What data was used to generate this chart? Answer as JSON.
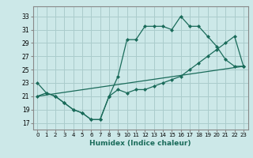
{
  "title": "",
  "xlabel": "Humidex (Indice chaleur)",
  "background_color": "#cce8e8",
  "grid_color": "#aacccc",
  "line_color": "#1a6b5a",
  "xlim": [
    -0.5,
    23.5
  ],
  "ylim": [
    16,
    34.5
  ],
  "yticks": [
    17,
    19,
    21,
    23,
    25,
    27,
    29,
    31,
    33
  ],
  "xticks": [
    0,
    1,
    2,
    3,
    4,
    5,
    6,
    7,
    8,
    9,
    10,
    11,
    12,
    13,
    14,
    15,
    16,
    17,
    18,
    19,
    20,
    21,
    22,
    23
  ],
  "line1_x": [
    0,
    1,
    2,
    3,
    4,
    5,
    6,
    7,
    8,
    9,
    10,
    11,
    12,
    13,
    14,
    15,
    16,
    17,
    18,
    19,
    20,
    21,
    22,
    23
  ],
  "line1_y": [
    23,
    21.5,
    21,
    20,
    19,
    18.5,
    17.5,
    17.5,
    21,
    24,
    29.5,
    29.5,
    31.5,
    31.5,
    31.5,
    31,
    33,
    31.5,
    31.5,
    30,
    28.5,
    26.5,
    25.5,
    25.5
  ],
  "line2_x": [
    0,
    1,
    2,
    3,
    4,
    5,
    6,
    7,
    8,
    9,
    10,
    11,
    12,
    13,
    14,
    15,
    16,
    17,
    18,
    19,
    20,
    21,
    22,
    23
  ],
  "line2_y": [
    21,
    21.5,
    21,
    20,
    19,
    18.5,
    17.5,
    17.5,
    21,
    22,
    21.5,
    22,
    22,
    22.5,
    23,
    23.5,
    24,
    25,
    26,
    27,
    28,
    29,
    30,
    25.5
  ],
  "line3_x": [
    0,
    23
  ],
  "line3_y": [
    21,
    25.5
  ],
  "marker": "D",
  "marker_size": 2.0,
  "figsize": [
    3.2,
    2.0
  ],
  "dpi": 100,
  "tick_fontsize": 5.5,
  "xlabel_fontsize": 6.5
}
